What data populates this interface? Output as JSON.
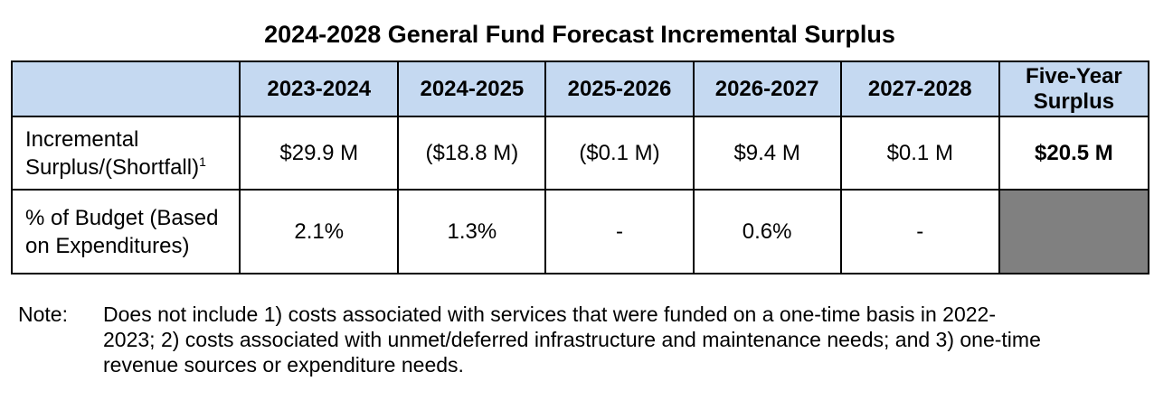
{
  "title": "2024-2028 General Fund Forecast Incremental Surplus",
  "table": {
    "headers": [
      "2023-2024",
      "2024-2025",
      "2025-2026",
      "2026-2027",
      "2027-2028",
      "Five-Year Surplus"
    ],
    "rows": [
      {
        "label": "Incremental Surplus/(Shortfall)",
        "footnote": "1",
        "values": [
          "$29.9 M",
          "($18.8 M)",
          "($0.1 M)",
          "$9.4 M",
          "$0.1 M"
        ],
        "total": "$20.5 M"
      },
      {
        "label": "% of Budget (Based on Expenditures)",
        "values": [
          "2.1%",
          "1.3%",
          "-",
          "0.6%",
          "-"
        ],
        "total": ""
      }
    ]
  },
  "note": {
    "label": "Note:",
    "text": "Does not include 1) costs associated with services that were funded on a one-time basis in 2022-2023; 2) costs associated with unmet/deferred infrastructure and maintenance needs; and 3) one-time revenue sources or expenditure needs."
  },
  "colors": {
    "header_bg": "#c5d9f1",
    "shaded_cell": "#808080",
    "border": "#000000"
  }
}
